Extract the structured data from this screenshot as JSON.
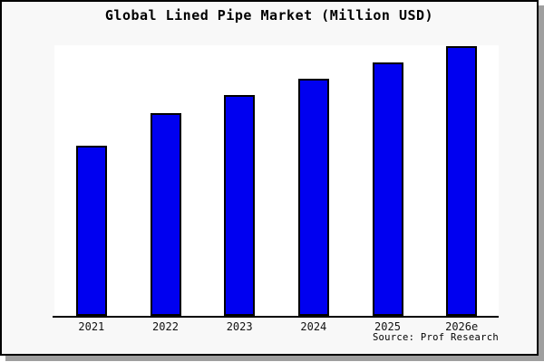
{
  "chart_data": {
    "type": "bar",
    "title": "Global Lined Pipe Market (Million USD)",
    "categories": [
      "2021",
      "2022",
      "2023",
      "2024",
      "2025",
      "2026e"
    ],
    "values": [
      63,
      75,
      82,
      88,
      94,
      100
    ],
    "values_note": "y-axis has no tick labels in the image; values are estimated relative heights with 2026e = 100",
    "xlabel": "",
    "ylabel": "",
    "ylim": [
      0,
      101
    ],
    "grid": false,
    "legend": false,
    "source": "Source: Prof Research",
    "colors": {
      "bar_fill": "#0000f0",
      "bar_border": "#000000",
      "plot_bg": "#ffffff",
      "frame_bg": "#f8f8f8",
      "frame_border": "#000000",
      "shadow": "#9f9f9f",
      "text": "#000000"
    }
  }
}
